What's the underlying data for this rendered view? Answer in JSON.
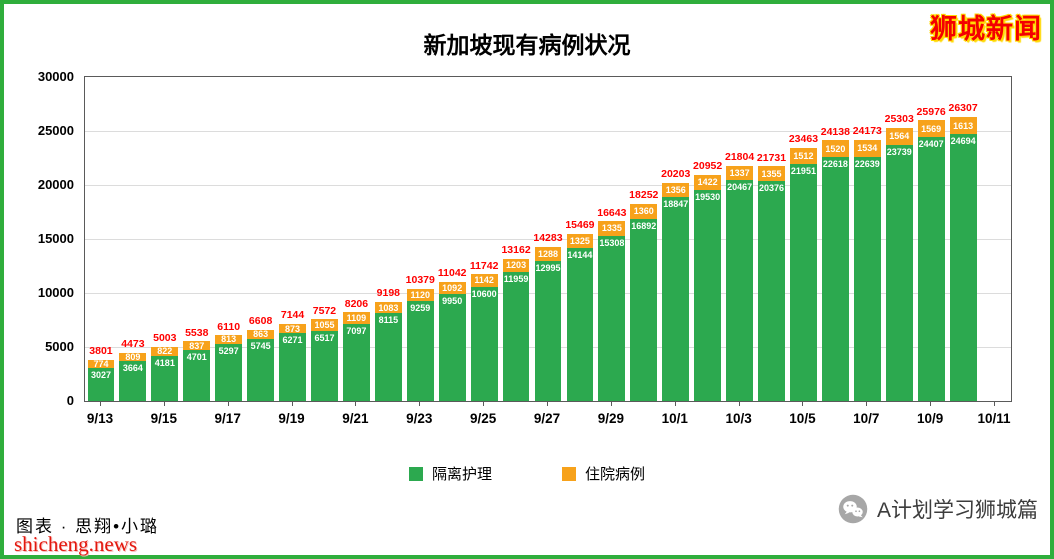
{
  "page": {
    "logo": "狮城新闻",
    "credit": "图表 · 思翔•小璐",
    "watermark": "shicheng.news",
    "wechat": "A计划学习狮城篇"
  },
  "chart_data": {
    "type": "bar",
    "stacked": true,
    "title": "新加坡现有病例状况",
    "x": [
      "9/13",
      "9/14",
      "9/15",
      "9/16",
      "9/17",
      "9/18",
      "9/19",
      "9/20",
      "9/21",
      "9/22",
      "9/23",
      "9/24",
      "9/25",
      "9/26",
      "9/27",
      "9/28",
      "9/29",
      "9/30",
      "10/1",
      "10/2",
      "10/3",
      "10/4",
      "10/5",
      "10/6",
      "10/7",
      "10/8",
      "10/9",
      "10/10"
    ],
    "x_tick_labels": [
      "9/13",
      "9/15",
      "9/17",
      "9/19",
      "9/21",
      "9/23",
      "9/25",
      "9/27",
      "9/29",
      "10/1",
      "10/3",
      "10/5",
      "10/7",
      "10/9",
      "10/11"
    ],
    "series": [
      {
        "name": "隔离护理",
        "color": "#2CA94F",
        "values": [
          3027,
          3664,
          4181,
          4701,
          5297,
          5745,
          6271,
          6517,
          7097,
          8115,
          9259,
          9950,
          10600,
          11959,
          12995,
          14144,
          15308,
          16892,
          18847,
          19530,
          20467,
          20376,
          21951,
          22618,
          22639,
          23739,
          24407,
          24694
        ]
      },
      {
        "name": "住院病例",
        "color": "#F7A21B",
        "values": [
          774,
          809,
          822,
          837,
          813,
          863,
          873,
          1055,
          1109,
          1083,
          1120,
          1092,
          1142,
          1203,
          1288,
          1325,
          1335,
          1360,
          1356,
          1422,
          1337,
          1355,
          1512,
          1520,
          1534,
          1564,
          1569,
          1613
        ]
      }
    ],
    "totals": [
      3801,
      4473,
      5003,
      5538,
      6110,
      6608,
      7144,
      7572,
      8206,
      9198,
      10379,
      11042,
      11742,
      13162,
      14283,
      15469,
      16643,
      18252,
      20203,
      20952,
      21804,
      21731,
      23463,
      24138,
      24173,
      25303,
      25976,
      26307
    ],
    "ylim": [
      0,
      30000
    ],
    "yticks": [
      0,
      5000,
      10000,
      15000,
      20000,
      25000,
      30000
    ],
    "grid": true,
    "legend_position": "bottom",
    "total_label_color": "#FF0000"
  }
}
